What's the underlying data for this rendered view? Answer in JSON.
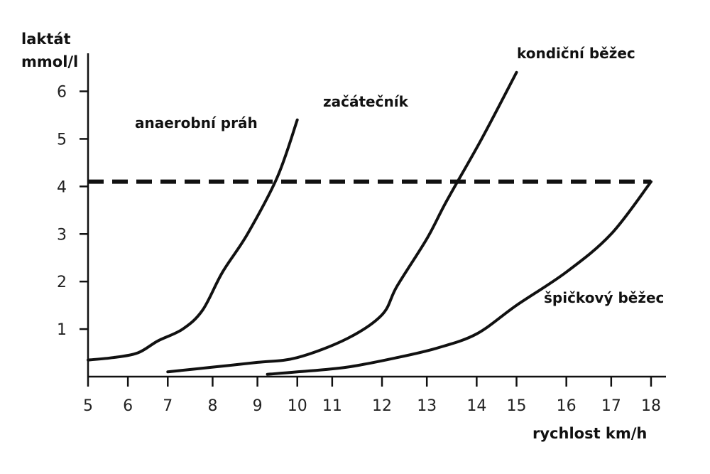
{
  "chart_data": {
    "type": "line",
    "xlabel": "rychlost km/h",
    "ylabel_lines": [
      "laktát",
      "mmol/l"
    ],
    "x_tick_labels": [
      "5",
      "6",
      "7",
      "8",
      "9",
      "10",
      "11",
      "12",
      "13",
      "14",
      "15",
      "16",
      "17",
      "18"
    ],
    "x_ticks": [
      4.8,
      5.6,
      6.4,
      7.3,
      8.2,
      9.0,
      9.7,
      10.7,
      11.6,
      12.6,
      13.4,
      14.4,
      15.3,
      16.1
    ],
    "y_ticks": [
      1,
      2,
      3,
      4,
      5,
      6
    ],
    "xlim": [
      4.8,
      16.2
    ],
    "ylim": [
      0,
      6.8
    ],
    "grid": false,
    "threshold": {
      "label": "anaerobní práh",
      "y": 4.1,
      "x_range": [
        4.8,
        16.1
      ]
    },
    "series": [
      {
        "name": "začátečník",
        "x": [
          4.8,
          5.3,
          5.8,
          6.2,
          6.7,
          7.1,
          7.5,
          8.0,
          8.6,
          9.0
        ],
        "y": [
          0.35,
          0.4,
          0.5,
          0.75,
          1.0,
          1.4,
          2.2,
          3.0,
          4.2,
          5.4
        ]
      },
      {
        "name": "kondiční běžec",
        "x": [
          6.4,
          7.3,
          8.2,
          9.0,
          10.0,
          10.7,
          11.0,
          11.6,
          12.0,
          12.7,
          13.4
        ],
        "y": [
          0.1,
          0.2,
          0.3,
          0.4,
          0.8,
          1.3,
          1.9,
          2.9,
          3.7,
          5.0,
          6.4
        ]
      },
      {
        "name": "špičkový běžec",
        "x": [
          8.4,
          9.0,
          10.0,
          11.0,
          11.8,
          12.6,
          13.4,
          14.4,
          15.3,
          16.1
        ],
        "y": [
          0.05,
          0.1,
          0.2,
          0.4,
          0.6,
          0.9,
          1.5,
          2.2,
          3.0,
          4.1
        ]
      }
    ]
  }
}
